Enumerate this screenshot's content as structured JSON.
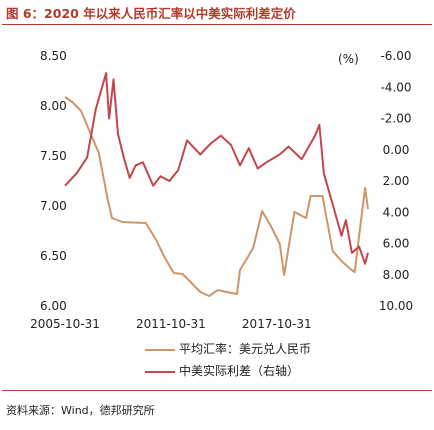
{
  "title": "图 6：2020 年以来人民币汇率以中美实际利差定价",
  "source": "资料来源：Wind，德邦研究所",
  "colors": {
    "accent": "#b03a2e",
    "series_left": "#cf9568",
    "series_right": "#c2474b"
  },
  "chart_data": {
    "type": "line",
    "unit_right": "(%)",
    "x_ticks": [
      "2005-10-31",
      "2011-10-31",
      "2017-10-31"
    ],
    "xlim": [
      "2005-10-31",
      "2022-12-31"
    ],
    "y_left": {
      "ticks": [
        "8.50",
        "8.00",
        "7.50",
        "7.00",
        "6.50",
        "6.00"
      ],
      "lim": [
        6.0,
        8.5
      ]
    },
    "y_right": {
      "ticks": [
        "-6.00",
        "-4.00",
        "-2.00",
        "0.00",
        "2.00",
        "4.00",
        "6.00",
        "8.00",
        "10.00"
      ],
      "lim": [
        -6.0,
        10.0
      ],
      "inverted": true
    },
    "series": [
      {
        "name": "平均汇率：美元兑人民币",
        "axis": "left",
        "points": [
          [
            "2005-10-31",
            8.09
          ],
          [
            "2006-03-31",
            8.04
          ],
          [
            "2006-09-30",
            7.95
          ],
          [
            "2007-03-31",
            7.74
          ],
          [
            "2007-09-30",
            7.53
          ],
          [
            "2008-03-31",
            7.07
          ],
          [
            "2008-06-30",
            6.88
          ],
          [
            "2009-01-31",
            6.84
          ],
          [
            "2010-05-31",
            6.83
          ],
          [
            "2010-12-31",
            6.66
          ],
          [
            "2011-06-30",
            6.48
          ],
          [
            "2011-12-31",
            6.33
          ],
          [
            "2012-06-30",
            6.32
          ],
          [
            "2012-12-31",
            6.23
          ],
          [
            "2013-06-30",
            6.14
          ],
          [
            "2013-12-31",
            6.1
          ],
          [
            "2014-06-30",
            6.16
          ],
          [
            "2014-12-31",
            6.14
          ],
          [
            "2015-07-31",
            6.12
          ],
          [
            "2015-09-30",
            6.36
          ],
          [
            "2016-06-30",
            6.58
          ],
          [
            "2016-12-31",
            6.95
          ],
          [
            "2017-06-30",
            6.8
          ],
          [
            "2017-12-31",
            6.62
          ],
          [
            "2018-03-31",
            6.31
          ],
          [
            "2018-10-31",
            6.94
          ],
          [
            "2019-06-30",
            6.88
          ],
          [
            "2019-09-30",
            7.1
          ],
          [
            "2020-05-31",
            7.1
          ],
          [
            "2020-12-31",
            6.55
          ],
          [
            "2021-06-30",
            6.45
          ],
          [
            "2021-12-31",
            6.37
          ],
          [
            "2022-03-31",
            6.34
          ],
          [
            "2022-06-30",
            6.7
          ],
          [
            "2022-10-31",
            7.18
          ],
          [
            "2022-12-31",
            6.97
          ]
        ]
      },
      {
        "name": "中美实际利差（右轴）",
        "axis": "right",
        "points": [
          [
            "2005-10-31",
            2.3
          ],
          [
            "2006-06-30",
            1.5
          ],
          [
            "2007-01-31",
            0.5
          ],
          [
            "2007-07-31",
            -2.6
          ],
          [
            "2008-02-29",
            -4.9
          ],
          [
            "2008-04-30",
            -2.0
          ],
          [
            "2008-07-31",
            -4.5
          ],
          [
            "2008-10-31",
            -1.0
          ],
          [
            "2009-02-28",
            0.5
          ],
          [
            "2009-06-30",
            1.8
          ],
          [
            "2009-10-31",
            1.0
          ],
          [
            "2010-03-31",
            0.8
          ],
          [
            "2010-10-31",
            2.3
          ],
          [
            "2011-03-31",
            1.7
          ],
          [
            "2011-09-30",
            2.0
          ],
          [
            "2012-03-31",
            1.3
          ],
          [
            "2012-09-30",
            -0.6
          ],
          [
            "2013-06-30",
            0.3
          ],
          [
            "2014-01-31",
            -0.4
          ],
          [
            "2014-08-31",
            -0.9
          ],
          [
            "2015-03-31",
            -0.3
          ],
          [
            "2015-09-30",
            1.0
          ],
          [
            "2016-03-31",
            -0.1
          ],
          [
            "2016-09-30",
            1.2
          ],
          [
            "2017-03-31",
            0.8
          ],
          [
            "2017-12-31",
            0.3
          ],
          [
            "2018-06-30",
            -0.2
          ],
          [
            "2019-03-31",
            0.6
          ],
          [
            "2019-12-31",
            -0.9
          ],
          [
            "2020-03-31",
            -1.6
          ],
          [
            "2020-06-30",
            1.5
          ],
          [
            "2020-12-31",
            3.5
          ],
          [
            "2021-06-30",
            5.5
          ],
          [
            "2021-09-30",
            4.5
          ],
          [
            "2022-01-31",
            6.6
          ],
          [
            "2022-06-30",
            6.2
          ],
          [
            "2022-10-31",
            7.3
          ],
          [
            "2022-12-31",
            6.6
          ]
        ]
      }
    ]
  }
}
